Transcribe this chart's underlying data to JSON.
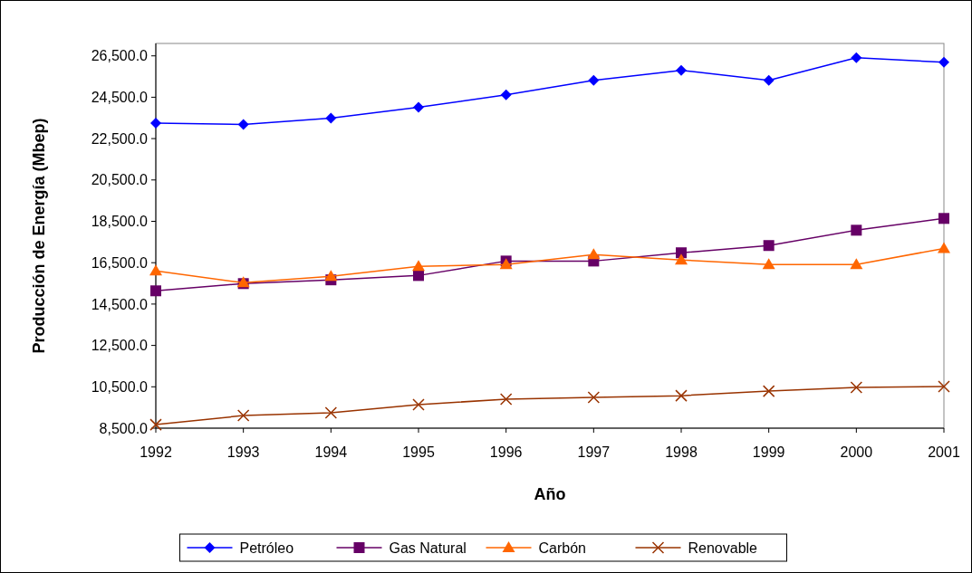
{
  "chart_data": {
    "type": "line",
    "xlabel": "Año",
    "ylabel": "Producción de Energía (Mbep)",
    "x": [
      1992,
      1993,
      1994,
      1995,
      1996,
      1997,
      1998,
      1999,
      2000,
      2001
    ],
    "xlim": [
      1992,
      2001
    ],
    "xticks": [
      1992,
      1993,
      1994,
      1995,
      1996,
      1997,
      1998,
      1999,
      2000,
      2001
    ],
    "ylim": [
      8500,
      27100
    ],
    "yticks": [
      {
        "value": 8500,
        "label": "8,500.0"
      },
      {
        "value": 10500,
        "label": "10,500.0"
      },
      {
        "value": 12500,
        "label": "12,500.0"
      },
      {
        "value": 14500,
        "label": "14,500.0"
      },
      {
        "value": 16500,
        "label": "16,500.0"
      },
      {
        "value": 18500,
        "label": "18,500.0"
      },
      {
        "value": 20500,
        "label": "20,500.0"
      },
      {
        "value": 22500,
        "label": "22,500.0"
      },
      {
        "value": 24500,
        "label": "24,500.0"
      },
      {
        "value": 26500,
        "label": "26,500.0"
      }
    ],
    "grid": false,
    "legend": "bottom",
    "line_style": "solid",
    "series": [
      {
        "name": "Petróleo",
        "color": "#0000ff",
        "marker": "diamond",
        "values": [
          23250,
          23180,
          23490,
          24010,
          24620,
          25320,
          25800,
          25320,
          26410,
          26190
        ]
      },
      {
        "name": "Gas Natural",
        "color": "#660066",
        "marker": "square",
        "values": [
          15140,
          15490,
          15670,
          15880,
          16580,
          16580,
          16980,
          17330,
          18070,
          18640
        ]
      },
      {
        "name": "Carbón",
        "color": "#ff6600",
        "marker": "triangle",
        "values": [
          16100,
          15530,
          15840,
          16320,
          16410,
          16890,
          16630,
          16410,
          16410,
          17190
        ]
      },
      {
        "name": "Renovable",
        "color": "#993300",
        "marker": "cross",
        "values": [
          8670,
          9110,
          9240,
          9640,
          9900,
          9990,
          10070,
          10290,
          10470,
          10510
        ]
      }
    ]
  }
}
